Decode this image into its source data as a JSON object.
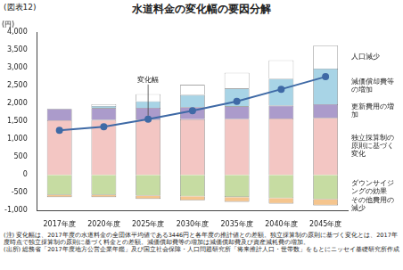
{
  "label": "(図表12)",
  "notes": [
    "(注) 変化幅は、2017年度の水道料金の全団体平均値である3446円と各年度の推計値との差額。独立採算制の原則に基づく変化とは、2017年度時点で独立採算制の原則に基づく料金との差額。減価償却費等の増加は減価償却費及び資産減耗費の増加。",
    "(出所) 総務省「2017年度地方公営企業年鑑」及び国立社会保障・人口問題研究所「将来推計人口・世帯数」をもとにニッセイ基礎研究所作成"
  ],
  "chart_data": {
    "type": "bar",
    "title": "水道料金の変化幅の要因分解",
    "ylabel": "(円)",
    "stacked": true,
    "grid": false,
    "categories": [
      "2017年度",
      "2020年度",
      "2025年度",
      "2030年度",
      "2035年度",
      "2040年度",
      "2045年度"
    ],
    "ylim": [
      -1000,
      4000
    ],
    "yticks": [
      {
        "value": -1000,
        "label": "-1,000"
      },
      -500,
      0,
      500,
      {
        "value": 1000,
        "label": "1,000"
      },
      {
        "value": 1500,
        "label": "1,500"
      },
      {
        "value": 2000,
        "label": "2,000"
      },
      {
        "value": 2500,
        "label": "2,500"
      },
      {
        "value": 3000,
        "label": "3,000"
      },
      {
        "value": 3500,
        "label": "3,500"
      },
      {
        "value": 4000,
        "label": "4,000"
      }
    ],
    "series": [
      {
        "name": "独立採算制の原則に基づく変化",
        "type": "bar",
        "color": "#f3c6c3",
        "values": [
          1530,
          1540,
          1550,
          1560,
          1570,
          1580,
          1600
        ]
      },
      {
        "name": "更新費用の増加",
        "type": "bar",
        "color": "#ab9bcb",
        "values": [
          320,
          330,
          330,
          340,
          350,
          360,
          380
        ]
      },
      {
        "name": "減価償却費等の増加",
        "type": "bar",
        "color": "#a8d4e6",
        "values": [
          0,
          60,
          180,
          340,
          500,
          750,
          1000
        ]
      },
      {
        "name": "人口減少",
        "type": "bar",
        "color": "#ffffff",
        "values": [
          0,
          50,
          200,
          280,
          440,
          520,
          640
        ]
      },
      {
        "name": "ダウンサイジングの効果",
        "type": "bar",
        "color": "#c6dca2",
        "values": [
          -560,
          -560,
          -580,
          -600,
          -620,
          -650,
          -680
        ]
      },
      {
        "name": "その他費用の減少",
        "type": "bar",
        "color": "#f5c58e",
        "values": [
          -60,
          -60,
          -90,
          -110,
          -130,
          -150,
          -170
        ]
      },
      {
        "name": "変化幅",
        "type": "line",
        "color": "#3f6aa6",
        "marker": "circle",
        "values": [
          1250,
          1350,
          1560,
          1800,
          2060,
          2400,
          2750
        ]
      }
    ]
  }
}
